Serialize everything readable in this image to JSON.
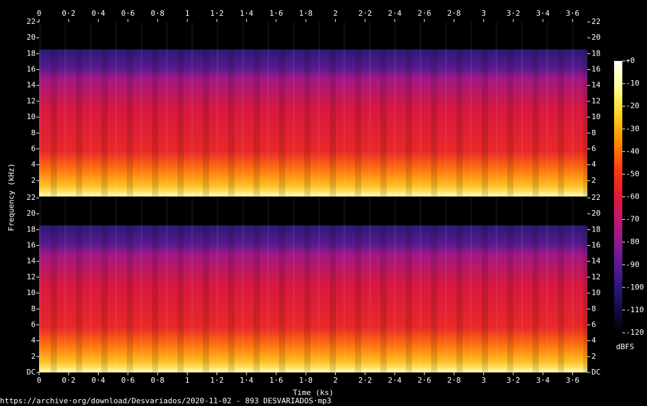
{
  "chart_data": {
    "type": "spectrogram",
    "xlabel": "Time (ks)",
    "ylabel": "Frequency (kHz)",
    "footer": "https://archive·org/download/Desvariados/2020-11-02 - 893 DESVARIADOS·mp3",
    "xlim": [
      0,
      3.7
    ],
    "xticks": [
      0,
      {
        "value": 0.2,
        "label": "0·2"
      },
      {
        "value": 0.4,
        "label": "0·4"
      },
      {
        "value": 0.6,
        "label": "0·6"
      },
      {
        "value": 0.8,
        "label": "0·8"
      },
      1,
      {
        "value": 1.2,
        "label": "1·2"
      },
      {
        "value": 1.4,
        "label": "1·4"
      },
      {
        "value": 1.6,
        "label": "1·6"
      },
      {
        "value": 1.8,
        "label": "1·8"
      },
      2,
      {
        "value": 2.2,
        "label": "2·2"
      },
      {
        "value": 2.4,
        "label": "2·4"
      },
      {
        "value": 2.6,
        "label": "2·6"
      },
      {
        "value": 2.8,
        "label": "2·8"
      },
      3,
      {
        "value": 3.2,
        "label": "3·2"
      },
      {
        "value": 3.4,
        "label": "3·4"
      },
      {
        "value": 3.6,
        "label": "3·6"
      }
    ],
    "ylim": [
      0,
      22
    ],
    "yticks": [
      {
        "value": 0,
        "label": "DC"
      },
      2,
      4,
      6,
      8,
      10,
      12,
      14,
      16,
      18,
      20,
      22
    ],
    "colorbar_label": "dBFS",
    "colorbar_lim": [
      -120,
      0
    ],
    "colorbar_ticks": [
      {
        "value": 0,
        "label": "+0"
      },
      -10,
      -20,
      -30,
      -40,
      -50,
      -60,
      -70,
      -80,
      -90,
      -100,
      -110,
      -120
    ],
    "colormap": [
      "#000000",
      "#14104a",
      "#3a1a8a",
      "#7a1a9a",
      "#b8187a",
      "#e01838",
      "#ff3a10",
      "#ff8a00",
      "#ffd020",
      "#ffff90",
      "#ffffff"
    ]
  }
}
